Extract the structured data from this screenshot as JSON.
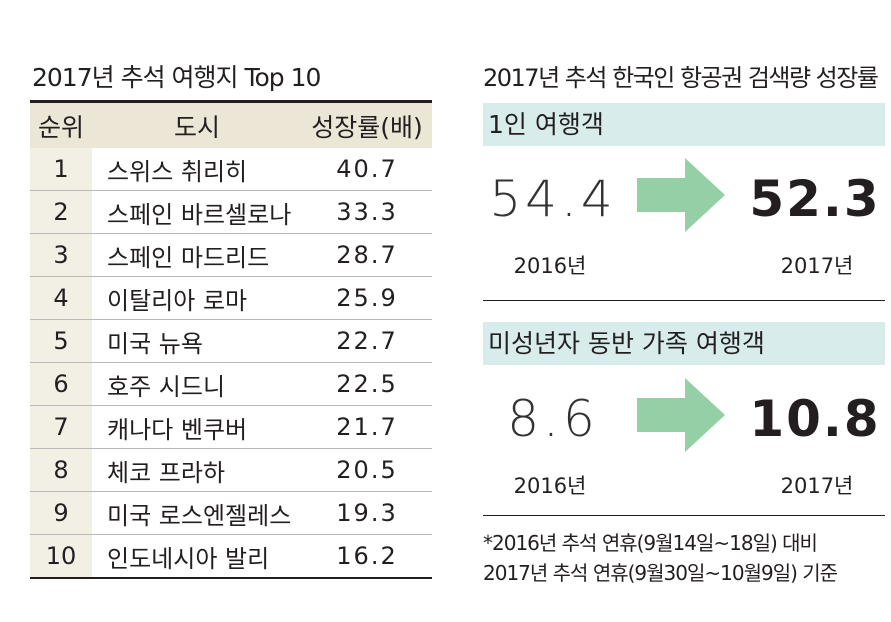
{
  "left": {
    "title": "2017년 추석 여행지 Top 10",
    "headers": [
      "순위",
      "도시",
      "성장률(배)"
    ]
  },
  "right": {
    "title": "2017년 추석 한국인 항공권 검색량 성장률",
    "sections": [
      {
        "label": "1인 여행객",
        "value_2016": "54.4",
        "value_2017": "52.3",
        "year_2016": "2016년",
        "year_2017": "2017년"
      },
      {
        "label": "미성년자 동반 가족 여행객",
        "value_2016": "8.6",
        "value_2017": "10.8",
        "year_2016": "2016년",
        "year_2017": "2017년"
      }
    ],
    "footnote_1": "*2016년 추석 연휴(9월14일~18일) 대비",
    "footnote_2": "2017년 추석 연휴(9월30일~10월9일) 기준"
  },
  "colors": {
    "header": "#ebe6d6",
    "rank_col": "#f2efe5",
    "band": "#d8eceb",
    "arrow": "#94cfa5"
  },
  "chart_data": {
    "type": "table",
    "title": "2017년 추석 여행지 Top 10",
    "columns": [
      "순위",
      "도시",
      "성장률(배)"
    ],
    "rows": [
      [
        "1",
        "스위스 취리히",
        "40.7"
      ],
      [
        "2",
        "스페인 바르셀로나",
        "33.3"
      ],
      [
        "3",
        "스페인 마드리드",
        "28.7"
      ],
      [
        "4",
        "이탈리아 로마",
        "25.9"
      ],
      [
        "5",
        "미국 뉴욕",
        "22.7"
      ],
      [
        "6",
        "호주 시드니",
        "22.5"
      ],
      [
        "7",
        "캐나다 벤쿠버",
        "21.7"
      ],
      [
        "8",
        "체코 프라하",
        "20.5"
      ],
      [
        "9",
        "미국 로스엔젤레스",
        "19.3"
      ],
      [
        "10",
        "인도네시아 발리",
        "16.2"
      ]
    ]
  }
}
